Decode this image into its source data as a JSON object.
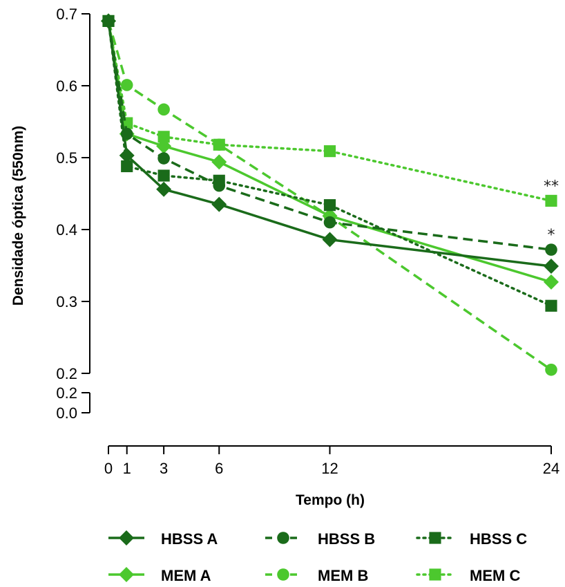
{
  "chart_data": {
    "type": "line",
    "title": "",
    "xlabel": "Tempo (h)",
    "ylabel": "Densidade óptica (550nm)",
    "x": [
      0,
      1,
      3,
      6,
      12,
      24
    ],
    "x_ticks": [
      "0",
      "1",
      "3",
      "6",
      "12",
      "24"
    ],
    "y_ticks": [
      "0.7",
      "0.6",
      "0.5",
      "0.4",
      "0.3",
      "0.2"
    ],
    "y_break_ticks": [
      "0.2",
      "0.0"
    ],
    "ylim": [
      0.2,
      0.7
    ],
    "y_axis_break": true,
    "grid": false,
    "legend_position": "bottom",
    "colors": {
      "dark": "#1a6b1a",
      "mid": "#2e8b2e",
      "light": "#4cc82e"
    },
    "series": [
      {
        "name": "HBSS A",
        "values": [
          0.69,
          0.503,
          0.456,
          0.435,
          0.386,
          0.349
        ],
        "color": "#1a6b1a",
        "marker": "diamond",
        "line": "solid"
      },
      {
        "name": "HBSS B",
        "values": [
          0.69,
          0.533,
          0.499,
          0.461,
          0.41,
          0.372
        ],
        "color": "#1a6b1a",
        "marker": "circle",
        "line": "dashed"
      },
      {
        "name": "HBSS C",
        "values": [
          0.69,
          0.488,
          0.475,
          0.468,
          0.434,
          0.294
        ],
        "color": "#1a6b1a",
        "marker": "square",
        "line": "dotted"
      },
      {
        "name": "MEM A",
        "values": [
          0.69,
          0.533,
          0.516,
          0.494,
          0.419,
          0.327
        ],
        "color": "#4cc82e",
        "marker": "diamond",
        "line": "solid"
      },
      {
        "name": "MEM B",
        "values": [
          0.69,
          0.601,
          0.567,
          0.518,
          0.418,
          0.205
        ],
        "color": "#4cc82e",
        "marker": "circle",
        "line": "dashed"
      },
      {
        "name": "MEM C",
        "values": [
          0.69,
          0.548,
          0.529,
          0.518,
          0.509,
          0.44
        ],
        "color": "#4cc82e",
        "marker": "square",
        "line": "dotted"
      }
    ],
    "annotations": [
      {
        "text": "**",
        "series": "MEM C",
        "x": 24
      },
      {
        "text": "*",
        "series": "HBSS B",
        "x": 24
      }
    ]
  }
}
